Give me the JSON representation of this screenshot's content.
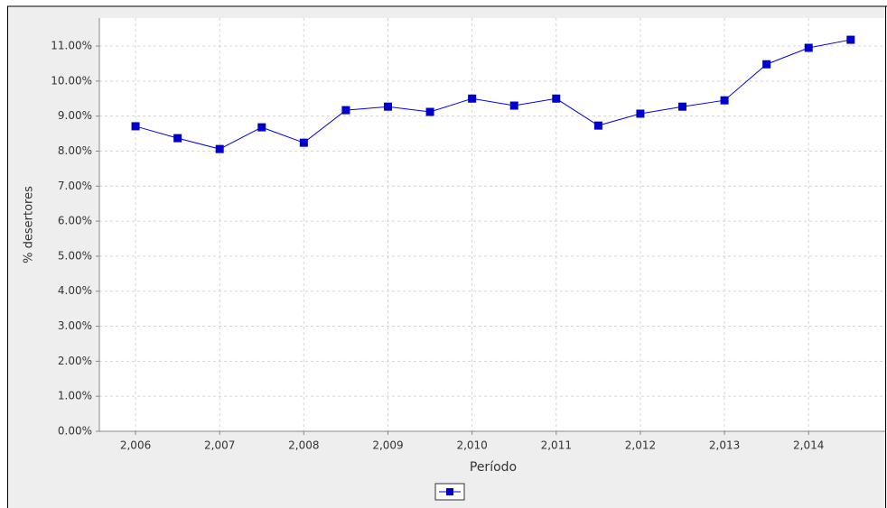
{
  "chart_data": {
    "type": "line",
    "x_label": "Período",
    "y_label": "% desertores",
    "x": [
      2006,
      2006.5,
      2007,
      2007.5,
      2008,
      2008.5,
      2009,
      2009.5,
      2010,
      2010.5,
      2011,
      2011.5,
      2012,
      2012.5,
      2013,
      2013.5,
      2014,
      2014.5
    ],
    "series": [
      {
        "color": "#0000ee",
        "values": [
          8.71,
          8.37,
          8.06,
          8.68,
          8.24,
          9.17,
          9.27,
          9.12,
          9.5,
          9.3,
          9.5,
          8.73,
          9.07,
          9.27,
          9.45,
          10.48,
          10.95,
          11.18
        ]
      }
    ],
    "xlim": [
      2005.57,
      2014.91
    ],
    "ylim": [
      0,
      11.8
    ],
    "xticks": [
      {
        "value": 2006,
        "label": "2,006"
      },
      {
        "value": 2007,
        "label": "2,007"
      },
      {
        "value": 2008,
        "label": "2,008"
      },
      {
        "value": 2009,
        "label": "2,009"
      },
      {
        "value": 2010,
        "label": "2,010"
      },
      {
        "value": 2011,
        "label": "2,011"
      },
      {
        "value": 2012,
        "label": "2,012"
      },
      {
        "value": 2013,
        "label": "2,013"
      },
      {
        "value": 2014,
        "label": "2,014"
      }
    ],
    "yticks": [
      {
        "value": 0,
        "label": "0.00%"
      },
      {
        "value": 1,
        "label": "1.00%"
      },
      {
        "value": 2,
        "label": "2.00%"
      },
      {
        "value": 3,
        "label": "3.00%"
      },
      {
        "value": 4,
        "label": "4.00%"
      },
      {
        "value": 5,
        "label": "5.00%"
      },
      {
        "value": 6,
        "label": "6.00%"
      },
      {
        "value": 7,
        "label": "7.00%"
      },
      {
        "value": 8,
        "label": "8.00%"
      },
      {
        "value": 9,
        "label": "9.00%"
      },
      {
        "value": 10,
        "label": "10.00%"
      },
      {
        "value": 11,
        "label": "11.00%"
      }
    ],
    "grid": true
  }
}
